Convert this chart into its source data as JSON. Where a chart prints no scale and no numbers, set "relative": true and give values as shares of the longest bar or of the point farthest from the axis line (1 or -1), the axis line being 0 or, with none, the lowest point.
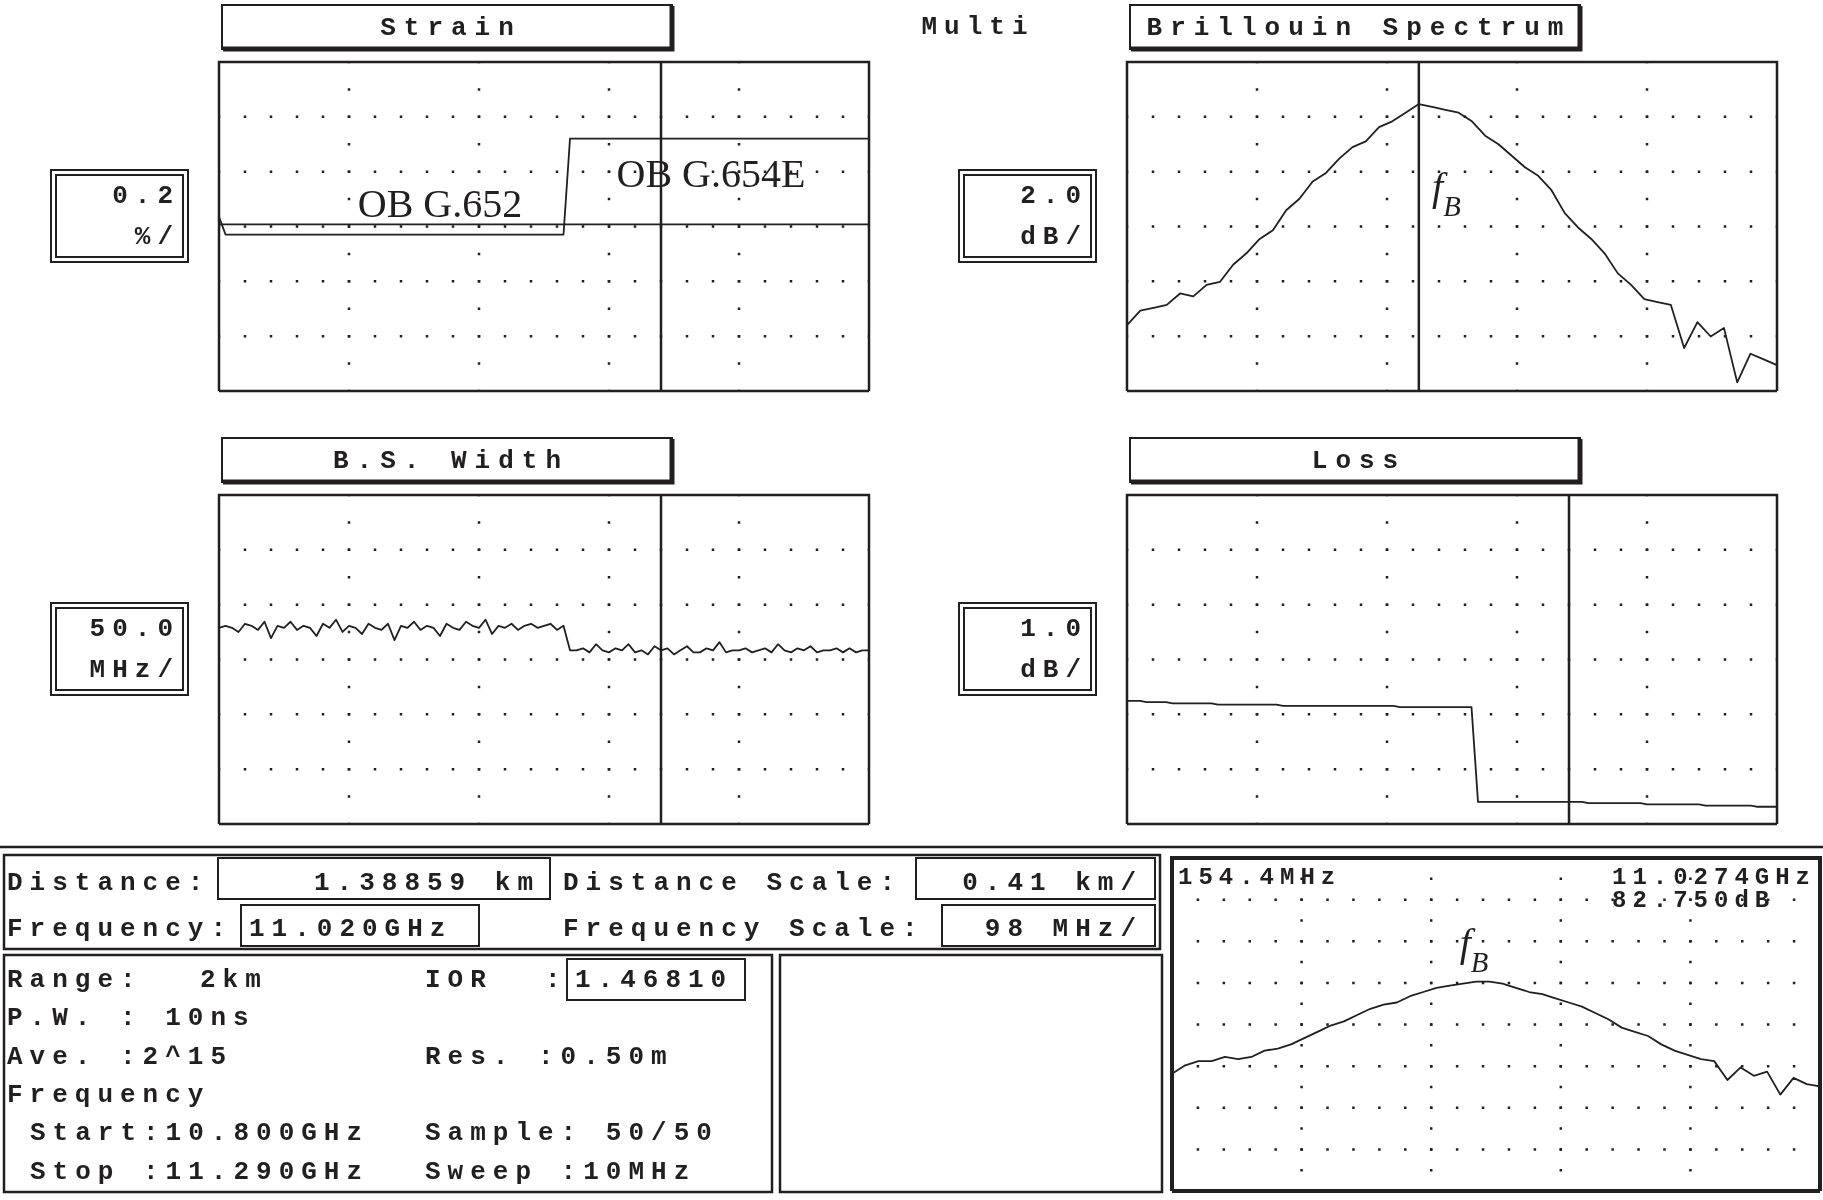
{
  "chart_data": [
    {
      "type": "line",
      "title": "Strain",
      "ylabel": "0.2 %/",
      "relative": true,
      "grid": true,
      "categories": [
        null,
        null,
        null,
        null,
        null,
        null,
        null,
        null,
        null,
        null,
        null,
        null,
        null,
        null,
        null,
        null,
        null,
        null,
        null,
        null,
        null,
        null,
        null,
        null,
        null,
        null,
        null,
        null,
        null,
        null,
        null,
        null,
        null,
        null,
        null,
        null,
        null,
        null,
        null,
        null,
        null,
        null,
        null,
        null,
        null,
        null,
        null,
        null,
        null,
        null,
        null,
        null,
        null,
        null,
        null,
        null,
        null,
        null,
        null,
        null,
        null,
        null,
        null,
        null,
        null,
        null,
        null,
        null,
        null,
        null,
        null,
        null,
        null,
        null,
        null,
        null,
        null,
        null,
        null,
        null,
        null,
        null,
        null,
        null,
        null,
        null,
        null,
        null,
        null,
        null,
        null,
        null,
        null,
        null,
        null,
        null,
        null,
        null,
        null,
        null,
        null
      ],
      "series": [
        {
          "color": "#231f20",
          "values": [
            0.69,
            0.62,
            0.62,
            0.62,
            0.62,
            0.62,
            0.62,
            0.62,
            0.62,
            0.62,
            0.62,
            0.62,
            0.62,
            0.62,
            0.62,
            0.62,
            0.62,
            0.62,
            0.62,
            0.62,
            0.62,
            0.62,
            0.62,
            0.62,
            0.62,
            0.62,
            0.62,
            0.62,
            0.62,
            0.62,
            0.62,
            0.62,
            0.62,
            0.62,
            0.62,
            0.62,
            0.62,
            0.62,
            0.62,
            0.62,
            0.62,
            0.62,
            0.62,
            0.62,
            0.62,
            0.62,
            0.62,
            0.62,
            0.62,
            0.62,
            0.62,
            0.62,
            0.62,
            0.62,
            1,
            1,
            1,
            1,
            1,
            1,
            1,
            1,
            1,
            1,
            1,
            1,
            1,
            1,
            1,
            1,
            1,
            1,
            1,
            1,
            1,
            1,
            1,
            1,
            1,
            1,
            1,
            1,
            1,
            1,
            1,
            1,
            1,
            1,
            1,
            1,
            1,
            1,
            1,
            1,
            1,
            1,
            1,
            1,
            1,
            1,
            1
          ]
        },
        {
          "color": "#231f20",
          "values": [
            0.66,
            0.66,
            0.66,
            0.66,
            0.66,
            0.66,
            0.66,
            0.66,
            0.66,
            0.66,
            0.66,
            0.66,
            0.66,
            0.66,
            0.66,
            0.66,
            0.66,
            0.66,
            0.66,
            0.66,
            0.66,
            0.66,
            0.66,
            0.66,
            0.66,
            0.66,
            0.66,
            0.66,
            0.66,
            0.66,
            0.66,
            0.66,
            0.66,
            0.66,
            0.66,
            0.66,
            0.66,
            0.66,
            0.66,
            0.66,
            0.66,
            0.66,
            0.66,
            0.66,
            0.66,
            0.66,
            0.66,
            0.66,
            0.66,
            0.66,
            0.66,
            0.66,
            0.66,
            0.66,
            0.66,
            0.66,
            0.66,
            0.66,
            0.66,
            0.66,
            0.66,
            0.66,
            0.66,
            0.66,
            0.66,
            0.66,
            0.66,
            0.66,
            0.66,
            0.66,
            0.66,
            0.66,
            0.66,
            0.66,
            0.66,
            0.66,
            0.66,
            0.66,
            0.66,
            0.66,
            0.66,
            0.66,
            0.66,
            0.66,
            0.66,
            0.66,
            0.66,
            0.66,
            0.66,
            0.66,
            0.66,
            0.66,
            0.66,
            0.66,
            0.66,
            0.66,
            0.66,
            0.66,
            0.66,
            0.66,
            0.66
          ]
        }
      ],
      "annotations": [
        "OB G.652",
        "OB G.654E"
      ]
    },
    {
      "type": "line",
      "title": "Brillouin Spectrum",
      "ylabel": "2.0 dB/",
      "relative": true,
      "grid": true,
      "categories": [
        null,
        null,
        null,
        null,
        null,
        null,
        null,
        null,
        null,
        null,
        null,
        null,
        null,
        null,
        null,
        null,
        null,
        null,
        null,
        null,
        null,
        null,
        null,
        null,
        null,
        null,
        null,
        null,
        null,
        null,
        null,
        null,
        null,
        null,
        null,
        null,
        null,
        null,
        null,
        null,
        null,
        null,
        null,
        null,
        null,
        null,
        null,
        null,
        null,
        null
      ],
      "series": [
        {
          "color": "#231f20",
          "values": [
            0.23,
            0.28,
            0.29,
            0.3,
            0.34,
            0.33,
            0.37,
            0.38,
            0.44,
            0.48,
            0.53,
            0.56,
            0.63,
            0.67,
            0.73,
            0.76,
            0.81,
            0.85,
            0.87,
            0.92,
            0.94,
            0.97,
            1,
            0.99,
            0.98,
            0.97,
            0.94,
            0.89,
            0.86,
            0.82,
            0.78,
            0.75,
            0.7,
            0.62,
            0.57,
            0.53,
            0.48,
            0.41,
            0.37,
            0.32,
            0.31,
            0.3,
            0.15,
            0.24,
            0.19,
            0.22,
            0.03,
            0.13,
            0.11,
            0.09
          ]
        }
      ],
      "annotations": [
        "f$_{B}$"
      ]
    },
    {
      "type": "line",
      "title": "B.S. Width",
      "ylabel": "50.0 MHz/",
      "relative": true,
      "grid": true,
      "categories": [
        null,
        null,
        null,
        null,
        null,
        null,
        null,
        null,
        null,
        null,
        null,
        null,
        null,
        null,
        null,
        null,
        null,
        null,
        null,
        null,
        null,
        null,
        null,
        null,
        null,
        null,
        null,
        null,
        null,
        null,
        null,
        null,
        null,
        null,
        null,
        null,
        null,
        null,
        null,
        null,
        null,
        null,
        null,
        null,
        null,
        null,
        null,
        null,
        null,
        null,
        null,
        null,
        null,
        null,
        null,
        null,
        null,
        null,
        null,
        null,
        null,
        null,
        null,
        null,
        null,
        null,
        null,
        null,
        null,
        null,
        null,
        null,
        null,
        null,
        null,
        null,
        null,
        null,
        null,
        null,
        null,
        null,
        null,
        null,
        null,
        null,
        null,
        null,
        null,
        null,
        null,
        null,
        null,
        null,
        null,
        null,
        null,
        null,
        null,
        null,
        null
      ],
      "series": [
        {
          "color": "#231f20",
          "values": [
            0.96,
            0.97,
            0.96,
            0.94,
            0.98,
            0.97,
            0.95,
            0.99,
            0.91,
            0.97,
            0.96,
            0.99,
            0.95,
            0.97,
            0.96,
            0.92,
            0.98,
            0.96,
            1,
            0.94,
            0.97,
            0.96,
            0.93,
            0.98,
            0.96,
            0.95,
            0.98,
            0.9,
            0.97,
            0.96,
            0.99,
            0.95,
            0.97,
            0.96,
            0.92,
            0.98,
            0.96,
            0.95,
            0.99,
            0.97,
            0.96,
            1,
            0.93,
            0.97,
            0.96,
            0.98,
            0.95,
            0.97,
            0.98,
            0.96,
            0.97,
            0.98,
            0.95,
            0.97,
            0.85,
            0.85,
            0.86,
            0.84,
            0.88,
            0.85,
            0.84,
            0.86,
            0.85,
            0.88,
            0.84,
            0.85,
            0.83,
            0.87,
            0.85,
            0.86,
            0.83,
            0.85,
            0.87,
            0.84,
            0.84,
            0.86,
            0.85,
            0.89,
            0.84,
            0.85,
            0.85,
            0.86,
            0.84,
            0.85,
            0.86,
            0.84,
            0.88,
            0.85,
            0.84,
            0.86,
            0.85,
            0.87,
            0.84,
            0.85,
            0.85,
            0.86,
            0.84,
            0.86,
            0.84,
            0.85,
            0.85
          ]
        }
      ]
    },
    {
      "type": "line",
      "title": "Loss",
      "ylabel": "1.0 dB/",
      "relative": true,
      "grid": true,
      "categories": [
        null,
        null,
        null,
        null,
        null,
        null,
        null,
        null,
        null,
        null,
        null,
        null,
        null,
        null,
        null,
        null,
        null,
        null,
        null,
        null,
        null,
        null,
        null,
        null,
        null,
        null,
        null,
        null,
        null,
        null,
        null,
        null,
        null,
        null,
        null,
        null,
        null,
        null,
        null,
        null,
        null,
        null,
        null,
        null,
        null,
        null,
        null,
        null,
        null,
        null,
        null,
        null,
        null,
        null,
        null,
        null,
        null,
        null,
        null,
        null,
        null,
        null,
        null,
        null,
        null,
        null,
        null,
        null,
        null,
        null,
        null,
        null,
        null,
        null,
        null,
        null,
        null,
        null,
        null,
        null,
        null,
        null,
        null,
        null,
        null,
        null,
        null,
        null,
        null,
        null,
        null,
        null,
        null,
        null,
        null,
        null,
        null,
        null,
        null,
        null,
        null
      ],
      "series": [
        {
          "color": "#231f20",
          "values": [
            1,
            1,
            1,
            0.99,
            0.99,
            0.99,
            0.99,
            0.98,
            0.98,
            0.98,
            0.98,
            0.98,
            0.98,
            0.98,
            0.97,
            0.97,
            0.97,
            0.97,
            0.97,
            0.97,
            0.97,
            0.97,
            0.97,
            0.97,
            0.96,
            0.96,
            0.96,
            0.96,
            0.96,
            0.96,
            0.96,
            0.96,
            0.96,
            0.96,
            0.96,
            0.96,
            0.96,
            0.96,
            0.96,
            0.96,
            0.96,
            0.96,
            0.95,
            0.95,
            0.95,
            0.95,
            0.95,
            0.95,
            0.95,
            0.95,
            0.95,
            0.95,
            0.95,
            0.95,
            0.18,
            0.18,
            0.18,
            0.18,
            0.18,
            0.18,
            0.18,
            0.18,
            0.18,
            0.18,
            0.18,
            0.18,
            0.18,
            0.18,
            0.18,
            0.18,
            0.18,
            0.17,
            0.17,
            0.17,
            0.17,
            0.17,
            0.17,
            0.17,
            0.17,
            0.17,
            0.16,
            0.16,
            0.16,
            0.16,
            0.16,
            0.16,
            0.16,
            0.16,
            0.16,
            0.15,
            0.15,
            0.15,
            0.15,
            0.15,
            0.15,
            0.15,
            0.15,
            0.14,
            0.14,
            0.14,
            0.14
          ]
        }
      ]
    },
    {
      "type": "line",
      "relative": true,
      "grid": true,
      "categories": [
        null,
        null,
        null,
        null,
        null,
        null,
        null,
        null,
        null,
        null,
        null,
        null,
        null,
        null,
        null,
        null,
        null,
        null,
        null,
        null,
        null,
        null,
        null,
        null,
        null,
        null,
        null,
        null,
        null,
        null,
        null,
        null,
        null,
        null,
        null,
        null,
        null,
        null,
        null,
        null,
        null,
        null,
        null,
        null,
        null,
        null,
        null,
        null,
        null,
        null
      ],
      "series": [
        {
          "color": "#231f20",
          "values": [
            0.56,
            0.6,
            0.62,
            0.62,
            0.64,
            0.63,
            0.64,
            0.67,
            0.68,
            0.7,
            0.73,
            0.76,
            0.79,
            0.81,
            0.84,
            0.87,
            0.89,
            0.9,
            0.93,
            0.95,
            0.97,
            0.98,
            0.99,
            1,
            1,
            0.99,
            0.97,
            0.95,
            0.94,
            0.92,
            0.9,
            0.88,
            0.85,
            0.82,
            0.78,
            0.76,
            0.74,
            0.7,
            0.67,
            0.65,
            0.63,
            0.62,
            0.53,
            0.59,
            0.55,
            0.57,
            0.46,
            0.54,
            0.51,
            0.5
          ]
        }
      ],
      "annotations": [
        "154.4MHz",
        "11.0274GHz",
        "82.750dB",
        "f$_{B}$"
      ]
    },
    {
      "type": "other",
      "title": "Multi",
      "annotations": [
        "Distance:",
        "1.38859 km",
        "Distance Scale:",
        "0.41 km/",
        "Frequency:",
        "11.020GHz",
        "Frequency Scale:",
        "98 MHz/",
        "Range:",
        "2km",
        "IOR",
        ":",
        "1.46810",
        "P.W. : 10ns",
        "Ave. :2^15",
        "Res. :0.50m",
        "Frequency",
        "Start:10.800GHz",
        "Sample: 50/50",
        "Stop :11.290GHz",
        "Sweep :10MHz"
      ]
    }
  ]
}
